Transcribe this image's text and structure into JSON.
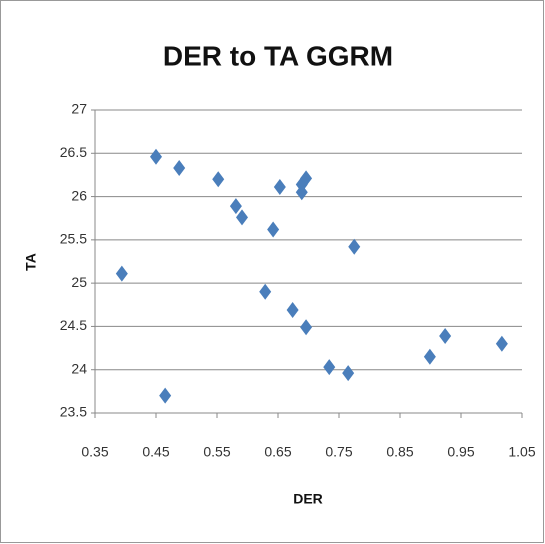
{
  "chart_data": {
    "type": "scatter",
    "title": "DER to TA GGRM",
    "x_label": "DER",
    "y_label": "TA",
    "x": [
      0.394,
      0.45,
      0.488,
      0.465,
      0.552,
      0.581,
      0.591,
      0.642,
      0.653,
      0.629,
      0.674,
      0.696,
      0.689,
      0.689,
      0.696,
      0.775,
      0.734,
      0.765,
      0.899,
      0.924,
      1.017
    ],
    "values": [
      25.11,
      26.46,
      26.33,
      23.7,
      26.2,
      25.89,
      25.76,
      25.62,
      26.11,
      24.9,
      24.69,
      24.49,
      26.05,
      26.14,
      26.21,
      25.42,
      24.03,
      23.96,
      24.15,
      24.39,
      24.3
    ],
    "color": "#4a7ebb",
    "xlim": [
      0.35,
      1.05
    ],
    "xticks": [
      0.35,
      0.45,
      0.55,
      0.65,
      0.75,
      0.85,
      0.95,
      1.05
    ],
    "ylim": [
      23.5,
      27
    ],
    "yticks": [
      23.5,
      24,
      24.5,
      25,
      25.5,
      26,
      26.5,
      27
    ],
    "grid": true
  }
}
